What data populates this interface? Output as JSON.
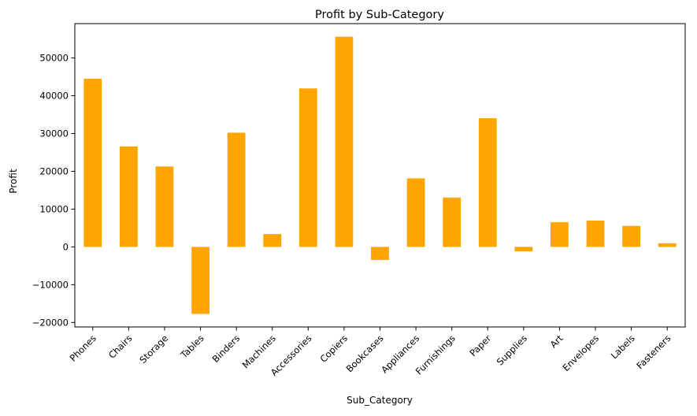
{
  "chart_data": {
    "type": "bar",
    "title": "Profit by Sub-Category",
    "xlabel": "Sub_Category",
    "ylabel": "Profit",
    "categories": [
      "Phones",
      "Chairs",
      "Storage",
      "Tables",
      "Binders",
      "Machines",
      "Accessories",
      "Copiers",
      "Bookcases",
      "Appliances",
      "Furnishings",
      "Paper",
      "Supplies",
      "Art",
      "Envelopes",
      "Labels",
      "Fasteners"
    ],
    "values": [
      44516,
      26590,
      21279,
      -17725,
      30222,
      3385,
      41937,
      55618,
      -3473,
      18138,
      13059,
      34054,
      -1189,
      6528,
      6964,
      5546,
      950
    ],
    "yticks": [
      -20000,
      -10000,
      0,
      10000,
      20000,
      30000,
      40000,
      50000
    ],
    "ytick_labels": [
      "−20000",
      "−10000",
      "0",
      "10000",
      "20000",
      "30000",
      "40000",
      "50000"
    ],
    "ylim": [
      -21192,
      59086
    ],
    "grid": false,
    "legend": "none",
    "bar_color": "#FFA500",
    "x_tick_rotation": 45
  }
}
